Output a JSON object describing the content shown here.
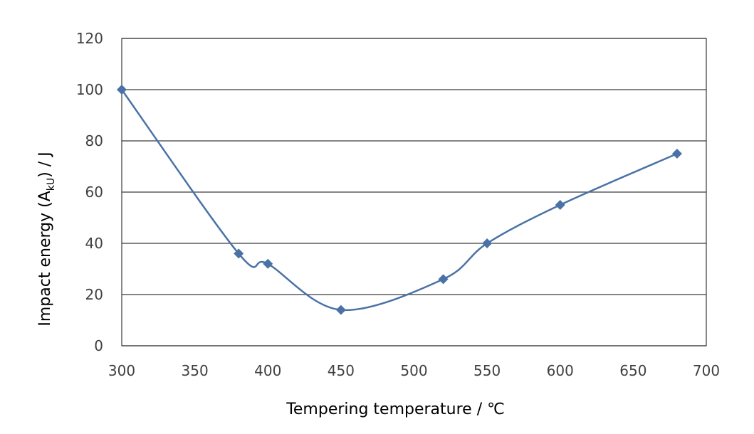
{
  "chart_data": {
    "type": "line",
    "title": "",
    "xlabel": "Tempering temperature / ℃",
    "ylabel_main": "Impact energy  (A",
    "ylabel_sub": "kU",
    "ylabel_end": ") / J",
    "xlim": [
      300,
      700
    ],
    "ylim": [
      0,
      120
    ],
    "xticks": [
      300,
      350,
      400,
      450,
      500,
      550,
      600,
      650,
      700
    ],
    "yticks": [
      0,
      20,
      40,
      60,
      80,
      100,
      120
    ],
    "grid": "horizontal",
    "smooth": true,
    "series": [
      {
        "x": [
          300,
          380,
          400,
          450,
          520,
          550,
          600,
          680
        ],
        "y": [
          100,
          36,
          32,
          14,
          26,
          40,
          55,
          75
        ],
        "color": "#4a72a6",
        "marker": "diamond"
      }
    ]
  }
}
